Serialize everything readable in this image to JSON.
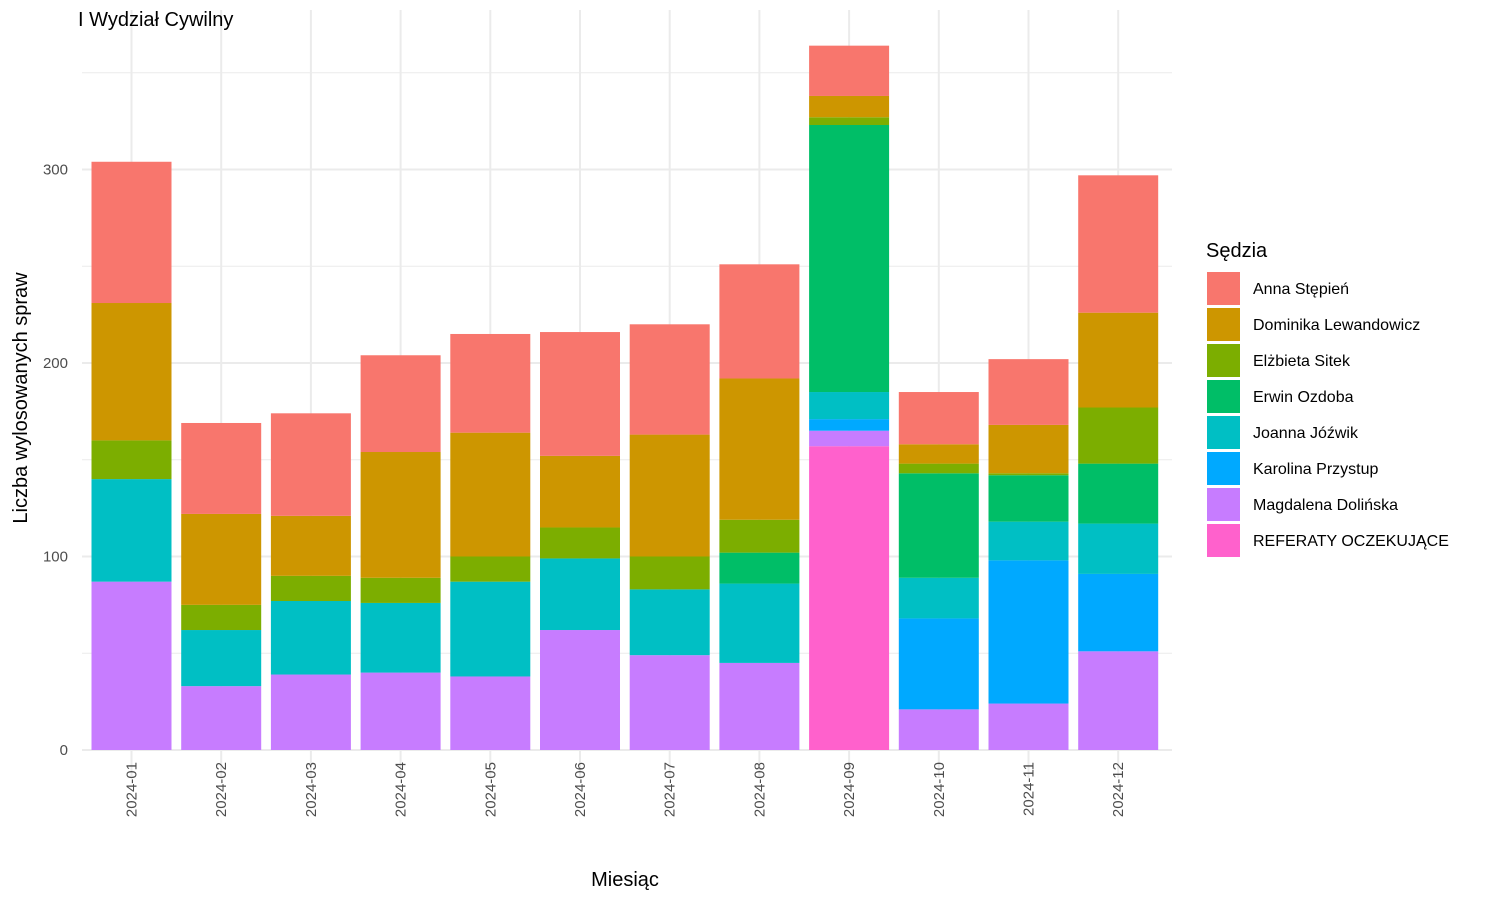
{
  "chart_data": {
    "type": "bar",
    "stacked": true,
    "title": "I Wydział Cywilny",
    "xlabel": "Miesiąc",
    "ylabel": "Liczba wylosowanych spraw",
    "ylim": [
      0,
      370
    ],
    "y_ticks": [
      0,
      100,
      200,
      300
    ],
    "grid": true,
    "legend": {
      "title": "Sędzia",
      "position": "right"
    },
    "categories": [
      "2024-01",
      "2024-02",
      "2024-03",
      "2024-04",
      "2024-05",
      "2024-06",
      "2024-07",
      "2024-08",
      "2024-09",
      "2024-10",
      "2024-11",
      "2024-12"
    ],
    "series": [
      {
        "name": "REFERATY OCZEKUJĄCE",
        "color": "#FF61CC",
        "values": [
          0,
          0,
          0,
          0,
          0,
          0,
          0,
          0,
          157,
          0,
          0,
          0
        ]
      },
      {
        "name": "Magdalena Dolińska",
        "color": "#C77CFF",
        "values": [
          87,
          33,
          39,
          40,
          38,
          62,
          49,
          45,
          8,
          21,
          24,
          51
        ]
      },
      {
        "name": "Karolina Przystup",
        "color": "#00A9FF",
        "values": [
          0,
          0,
          0,
          0,
          0,
          0,
          0,
          0,
          6,
          47,
          74,
          40
        ]
      },
      {
        "name": "Joanna Jóźwik",
        "color": "#00BFC4",
        "values": [
          53,
          29,
          38,
          36,
          49,
          37,
          34,
          41,
          14,
          21,
          20,
          26
        ]
      },
      {
        "name": "Erwin Ozdoba",
        "color": "#00BE67",
        "values": [
          0,
          0,
          0,
          0,
          0,
          0,
          0,
          16,
          138,
          54,
          24,
          31
        ]
      },
      {
        "name": "Elżbieta Sitek",
        "color": "#7CAE00",
        "values": [
          20,
          13,
          13,
          13,
          13,
          16,
          17,
          17,
          4,
          5,
          1,
          29
        ]
      },
      {
        "name": "Dominika Lewandowicz",
        "color": "#CD9600",
        "values": [
          71,
          47,
          31,
          65,
          64,
          37,
          63,
          73,
          11,
          10,
          25,
          49
        ]
      },
      {
        "name": "Anna Stępień",
        "color": "#F8766D",
        "values": [
          73,
          47,
          53,
          50,
          51,
          64,
          57,
          59,
          26,
          27,
          34,
          71
        ]
      }
    ],
    "legend_order": [
      "Anna Stępień",
      "Dominika Lewandowicz",
      "Elżbieta Sitek",
      "Erwin Ozdoba",
      "Joanna Jóźwik",
      "Karolina Przystup",
      "Magdalena Dolińska",
      "REFERATY OCZEKUJĄCE"
    ]
  }
}
